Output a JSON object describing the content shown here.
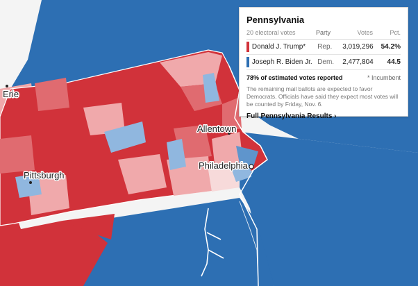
{
  "map": {
    "colors": {
      "dem_dark": "#2d6fb3",
      "dem_light": "#90b7df",
      "rep_dark": "#d1323a",
      "rep_mid": "#e06b70",
      "rep_light": "#f0a9ab",
      "white": "#ffffff",
      "land_gray": "#f4f4f4"
    },
    "cities": {
      "erie": "Erie",
      "pittsburgh": "Pittsburgh",
      "allentown": "Allentown",
      "philadelphia": "Philadelphia"
    }
  },
  "tooltip": {
    "title": "Pennsylvania",
    "electoral_votes": "20 electoral votes",
    "col_party": "Party",
    "col_votes": "Votes",
    "col_pct": "Pct.",
    "candidates": [
      {
        "name": "Donald J. Trump*",
        "party": "Rep.",
        "votes": "3,019,296",
        "pct": "54.2%",
        "color": "#d1323a"
      },
      {
        "name": "Joseph R. Biden Jr.",
        "party": "Dem.",
        "votes": "2,477,804",
        "pct": "44.5",
        "color": "#2d6fb3"
      }
    ],
    "reported": "78% of estimated votes reported",
    "incumbent_note": "* Incumbent",
    "note": "The remaining mail ballots are expected to favor Democrats. Officials have said they expect most votes will be counted by Friday, Nov. 6.",
    "link_label": "Full Pennsylvania Results ›"
  }
}
